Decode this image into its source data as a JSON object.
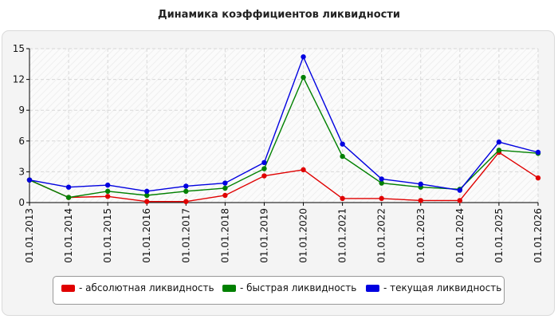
{
  "chart_data": {
    "type": "line",
    "title": "Динамика коэффициентов ликвидности",
    "xlabel": "",
    "ylabel": "",
    "categories": [
      "01.01.2013",
      "01.01.2014",
      "01.01.2015",
      "01.01.2016",
      "01.01.2017",
      "01.01.2018",
      "01.01.2019",
      "01.01.2020",
      "01.01.2021",
      "01.01.2022",
      "01.01.2023",
      "01.01.2024",
      "01.01.2025",
      "01.01.2026"
    ],
    "ylim": [
      0,
      15
    ],
    "yticks": [
      0,
      3,
      6,
      9,
      12,
      15
    ],
    "grid": true,
    "legend_position": "bottom",
    "series": [
      {
        "name": "- абсолютная ликвидность",
        "color": "#e00000",
        "values": [
          2.2,
          0.5,
          0.6,
          0.1,
          0.1,
          0.7,
          2.6,
          3.2,
          0.4,
          0.4,
          0.2,
          0.2,
          4.9,
          2.4
        ]
      },
      {
        "name": "- быстрая ликвидность",
        "color": "#008000",
        "values": [
          2.2,
          0.5,
          1.1,
          0.7,
          1.1,
          1.4,
          3.3,
          12.2,
          4.5,
          1.9,
          1.5,
          1.3,
          5.1,
          4.8
        ]
      },
      {
        "name": "- текущая ликвидность",
        "color": "#0000e0",
        "values": [
          2.2,
          1.5,
          1.7,
          1.1,
          1.6,
          1.9,
          3.9,
          14.2,
          5.7,
          2.3,
          1.8,
          1.2,
          5.9,
          4.9
        ]
      }
    ]
  }
}
